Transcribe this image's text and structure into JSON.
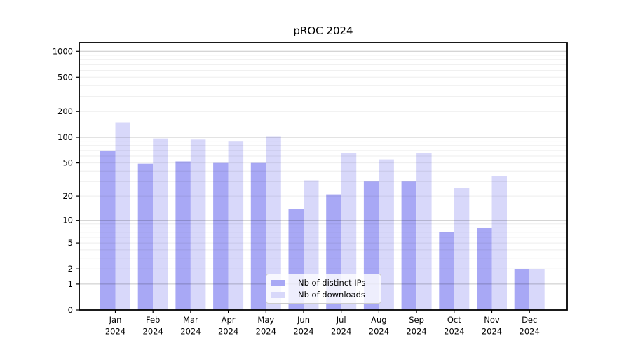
{
  "chart_data": {
    "type": "bar",
    "title": "pROC 2024",
    "categories": [
      "Jan 2024",
      "Feb 2024",
      "Mar 2024",
      "Apr 2024",
      "May 2024",
      "Jun 2024",
      "Jul 2024",
      "Aug 2024",
      "Sep 2024",
      "Oct 2024",
      "Nov 2024",
      "Dec 2024"
    ],
    "series": [
      {
        "name": "Nb of distinct IPs",
        "color": "#a8a8f5",
        "values": [
          70,
          49,
          52,
          50,
          50,
          14,
          21,
          30,
          30,
          7,
          8,
          2
        ]
      },
      {
        "name": "Nb of downloads",
        "color": "#d8d8fa",
        "values": [
          150,
          97,
          94,
          89,
          103,
          31,
          66,
          55,
          65,
          25,
          35,
          2
        ]
      }
    ],
    "xlabel": "",
    "ylabel": "",
    "y_axis": {
      "scale": "log1p",
      "ticks": [
        0,
        1,
        2,
        5,
        10,
        20,
        50,
        100,
        200,
        500,
        1000
      ],
      "ylim": [
        0,
        1260
      ]
    },
    "grid": true,
    "legend_position": "lower center"
  },
  "colors": {
    "bar_ips": "#a8a8f5",
    "bar_downloads": "#d8d8fa",
    "grid_minor": "rgba(0,0,0,0.07)",
    "grid_major": "rgba(0,0,0,0.22)",
    "spine": "#000000",
    "text": "#000000"
  }
}
